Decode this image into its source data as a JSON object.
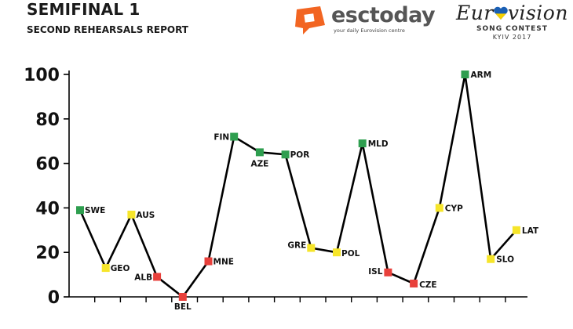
{
  "header": {
    "title": "SEMIFINAL 1",
    "subtitle": "SECOND REHEARSALS REPORT"
  },
  "logos": {
    "esctoday": {
      "name": "esctoday",
      "tagline": "your daily Eurovision centre",
      "color": "#f26522"
    },
    "eurovision": {
      "name_left": "Eur",
      "name_right": "vision",
      "song_contest": "SONG CONTEST",
      "city_year": "KYIV 2017"
    }
  },
  "chart_data": {
    "type": "line",
    "title": "SEMIFINAL 1",
    "subtitle": "SECOND REHEARSALS REPORT",
    "xlabel": "",
    "ylabel": "",
    "ylim": [
      0,
      100
    ],
    "yticks": [
      0,
      20,
      40,
      60,
      80,
      100
    ],
    "grid": false,
    "legend": "none",
    "line_color": "#000000",
    "status_colors": {
      "green": "#2e9e4f",
      "yellow": "#f6e52a",
      "red": "#e8403b"
    },
    "points": [
      {
        "label": "SWE",
        "value": 39,
        "status": "green"
      },
      {
        "label": "GEO",
        "value": 13,
        "status": "yellow"
      },
      {
        "label": "AUS",
        "value": 37,
        "status": "yellow"
      },
      {
        "label": "ALB",
        "value": 9,
        "status": "red"
      },
      {
        "label": "BEL",
        "value": 0,
        "status": "red"
      },
      {
        "label": "MNE",
        "value": 16,
        "status": "red"
      },
      {
        "label": "FIN",
        "value": 72,
        "status": "green"
      },
      {
        "label": "AZE",
        "value": 65,
        "status": "green"
      },
      {
        "label": "POR",
        "value": 64,
        "status": "green"
      },
      {
        "label": "GRE",
        "value": 22,
        "status": "yellow"
      },
      {
        "label": "POL",
        "value": 20,
        "status": "yellow"
      },
      {
        "label": "MLD",
        "value": 69,
        "status": "green"
      },
      {
        "label": "ISL",
        "value": 11,
        "status": "red"
      },
      {
        "label": "CZE",
        "value": 6,
        "status": "red"
      },
      {
        "label": "CYP",
        "value": 40,
        "status": "yellow"
      },
      {
        "label": "ARM",
        "value": 100,
        "status": "green"
      },
      {
        "label": "SLO",
        "value": 17,
        "status": "yellow"
      },
      {
        "label": "LAT",
        "value": 30,
        "status": "yellow"
      }
    ]
  }
}
